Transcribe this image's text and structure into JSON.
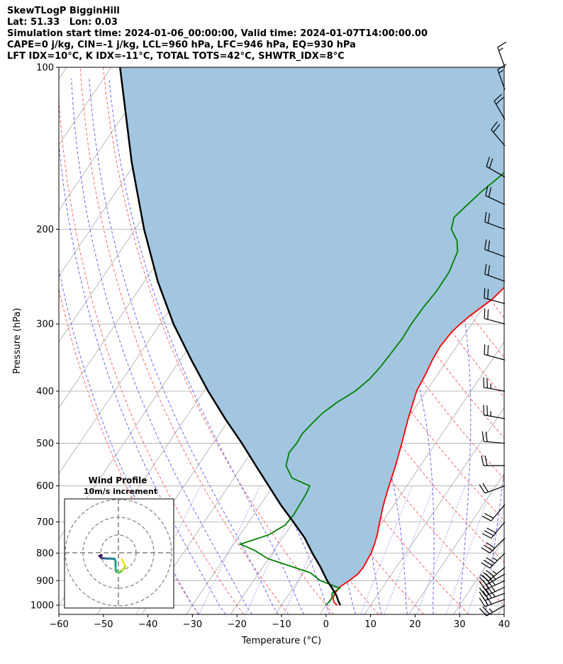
{
  "titles": [
    "SkewTLogP BigginHill",
    "Lat: 51.33   Lon: 0.03",
    "Simulation start time: 2024-01-06_00:00:00, Valid time: 2024-01-07T14:00:00.00",
    "CAPE=0 j/kg, CIN=-1 j/kg, LCL=960 hPa, LFC=946 hPa, EQ=930 hPa",
    "LFT IDX=10°C, K IDX=-11°C, TOTAL TOTS=42°C, SHWTR_IDX=8°C"
  ],
  "chart_data": {
    "type": "line",
    "xlabel": "Temperature (°C)",
    "ylabel": "Pressure (hPa)",
    "xlim": [
      -60,
      40
    ],
    "ylim": [
      1040,
      100
    ],
    "y_scale": "log",
    "x_ticks": [
      "−60",
      "−50",
      "−40",
      "−30",
      "−20",
      "−10",
      "0",
      "10",
      "20",
      "30",
      "40"
    ],
    "y_ticks": [
      "100",
      "200",
      "300",
      "400",
      "500",
      "600",
      "700",
      "800",
      "900",
      "1000"
    ],
    "grid": true,
    "colors": {
      "temperature": "#ff0000",
      "dewpoint": "#008000",
      "parcel": "#000000",
      "cape_fill": "#a2c6e0",
      "dry_adiabat": "#ff6666",
      "moist_adiabat": "#6666ff",
      "mixing_ratio": "#9a9aff",
      "isotherm": "#aaaaaa"
    },
    "series": [
      {
        "key": "temperature",
        "pressure": [
          1000,
          990,
          970,
          950,
          925,
          900,
          875,
          850,
          825,
          800,
          770,
          740,
          700,
          650,
          600,
          550,
          500,
          450,
          400,
          370,
          350,
          330,
          310,
          300,
          290,
          270,
          250,
          230,
          215,
          200,
          190,
          180,
          170,
          160,
          150,
          140,
          130,
          120,
          110,
          100
        ],
        "values": [
          2.5,
          1.5,
          0.5,
          0.2,
          0.3,
          1.5,
          2.4,
          2.6,
          2.4,
          2.2,
          1.6,
          0.8,
          -0.6,
          -2.4,
          -4.0,
          -5.6,
          -7.6,
          -9.9,
          -12.2,
          -12.8,
          -13.4,
          -13.7,
          -13.3,
          -12.6,
          -11.7,
          -9.2,
          -7.8,
          -6.8,
          -5.1,
          -2.4,
          -1.0,
          0.7,
          2.7,
          4.2,
          6.4,
          7.2,
          8.5,
          10.0,
          11.3,
          15.0
        ]
      },
      {
        "key": "dewpoint",
        "pressure": [
          1000,
          970,
          950,
          930,
          900,
          870,
          850,
          820,
          790,
          770,
          740,
          710,
          680,
          650,
          620,
          600,
          580,
          550,
          520,
          500,
          480,
          460,
          440,
          420,
          400,
          380,
          360,
          340,
          320,
          300,
          280,
          260,
          240,
          220,
          210,
          200,
          190,
          180,
          170,
          160,
          150,
          140,
          130,
          120,
          110,
          100
        ],
        "values": [
          0.0,
          0.3,
          -0.5,
          0.5,
          -5.0,
          -8.5,
          -13.0,
          -20.0,
          -24.5,
          -28.5,
          -23.6,
          -21.4,
          -21.0,
          -21.2,
          -21.4,
          -21.8,
          -27.0,
          -30.2,
          -31.5,
          -31.2,
          -31.4,
          -30.8,
          -30.0,
          -28.4,
          -26.0,
          -24.6,
          -24.0,
          -23.7,
          -23.4,
          -23.6,
          -23.4,
          -22.9,
          -23.0,
          -24.2,
          -26.0,
          -29.0,
          -30.2,
          -29.1,
          -27.9,
          -26.2,
          -24.6,
          -22.6,
          -20.5,
          -17.7,
          -14.6,
          -9.5
        ]
      },
      {
        "key": "parcel",
        "pressure": [
          1000,
          980,
          960,
          950,
          930,
          900,
          850,
          800,
          750,
          700,
          650,
          600,
          550,
          500,
          450,
          400,
          350,
          300,
          250,
          200,
          150,
          100
        ],
        "values": [
          3.2,
          2.0,
          0.9,
          0.2,
          -1.2,
          -3.5,
          -7.0,
          -11.0,
          -15.0,
          -20.0,
          -25.5,
          -31.0,
          -37.0,
          -43.5,
          -51.0,
          -59.0,
          -67.5,
          -77.0,
          -87.0,
          -98.0,
          -111.0,
          -128.0
        ]
      }
    ],
    "wind_barbs": {
      "pressure": [
        1000,
        975,
        950,
        925,
        900,
        875,
        850,
        800,
        750,
        700,
        650,
        600,
        550,
        500,
        450,
        400,
        350,
        300,
        275,
        250,
        225,
        200,
        180,
        160,
        140,
        125,
        110,
        100
      ],
      "speed_kt": [
        25,
        30,
        35,
        35,
        35,
        35,
        35,
        35,
        30,
        30,
        20,
        20,
        20,
        20,
        25,
        25,
        20,
        20,
        20,
        20,
        20,
        20,
        20,
        20,
        20,
        20,
        15,
        15
      ],
      "direction_deg": [
        240,
        250,
        250,
        245,
        245,
        240,
        230,
        225,
        225,
        220,
        220,
        250,
        270,
        275,
        280,
        280,
        285,
        285,
        285,
        290,
        290,
        290,
        295,
        300,
        320,
        330,
        340,
        340
      ]
    },
    "hodograph": {
      "title": "Wind Profile",
      "subtitle": "10m/s increment",
      "u": [
        2.0,
        2.6,
        3.2,
        3.8,
        3.0,
        2.2,
        1.4,
        0.5,
        -0.4,
        -1.3,
        -1.5,
        -1.6,
        -1.6,
        -1.8,
        -2.2,
        -3.0,
        -4.5,
        -6.0,
        -7.5,
        -8.8,
        -9.6,
        -9.9,
        -9.9,
        -10.3,
        -10.8,
        -10.5,
        -9.8,
        -9.6,
        -9.5
      ],
      "v": [
        -3.7,
        -5.1,
        -6.3,
        -7.7,
        -9.0,
        -10.0,
        -10.8,
        -11.2,
        -11.0,
        -10.7,
        -9.3,
        -7.5,
        -5.5,
        -4.2,
        -3.5,
        -3.4,
        -3.3,
        -3.3,
        -3.2,
        -3.1,
        -3.0,
        -2.8,
        -2.5,
        -2.0,
        -1.8,
        -1.8,
        -1.5,
        -1.4,
        -1.5
      ]
    }
  }
}
